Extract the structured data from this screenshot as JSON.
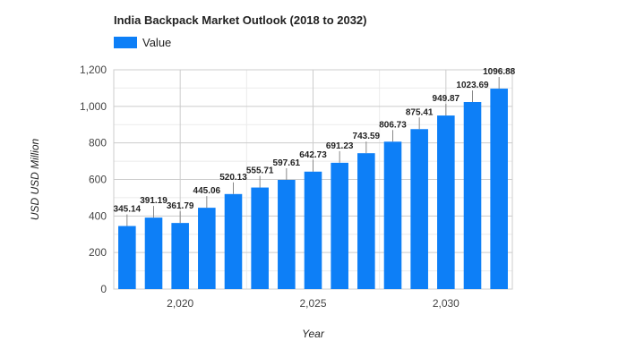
{
  "chart_data": {
    "type": "bar",
    "title": "India Backpack Market Outlook (2018 to 2032)",
    "xlabel": "Year",
    "ylabel": "USD USD Million",
    "legend": {
      "position": "top-left",
      "entries": [
        "Value"
      ]
    },
    "series": [
      {
        "name": "Value",
        "color": "#0d7ff7",
        "x": [
          2018,
          2019,
          2020,
          2021,
          2022,
          2023,
          2024,
          2025,
          2026,
          2027,
          2028,
          2029,
          2030,
          2031,
          2032
        ],
        "values": [
          345.14,
          391.19,
          361.79,
          445.06,
          520.13,
          555.71,
          597.61,
          642.73,
          691.23,
          743.59,
          806.73,
          875.41,
          949.87,
          1023.69,
          1096.88
        ],
        "labels": [
          "345.14",
          "391.19",
          "361.79",
          "445.06",
          "520.13",
          "555.71",
          "597.61",
          "642.73",
          "691.23",
          "743.59",
          "806.73",
          "875.41",
          "949.87",
          "1023.69",
          "1096.88"
        ]
      }
    ],
    "ylim": [
      0,
      1200
    ],
    "yticks": [
      0,
      200,
      400,
      600,
      800,
      1000,
      1200
    ],
    "ytick_labels": [
      "0",
      "200",
      "400",
      "600",
      "800",
      "1,000",
      "1,200"
    ],
    "xticks": [
      2020,
      2025,
      2030
    ],
    "xtick_labels": [
      "2,020",
      "2,025",
      "2,030"
    ],
    "grid": true
  }
}
